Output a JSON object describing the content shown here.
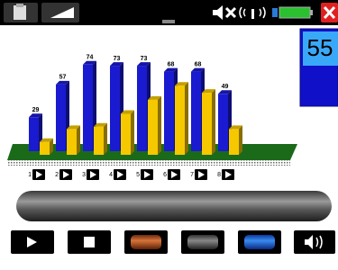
{
  "chart_data": {
    "type": "bar",
    "categories": [
      "1",
      "2",
      "3",
      "4",
      "5",
      "6",
      "7",
      "8"
    ],
    "series": [
      {
        "color": "#1a1ad0",
        "values": [
          29,
          57,
          74,
          73,
          73,
          68,
          68,
          49
        ]
      },
      {
        "color": "#f5c800",
        "values": [
          11,
          22,
          24,
          35,
          47,
          59,
          53,
          22
        ]
      }
    ]
  },
  "readout": 55
}
